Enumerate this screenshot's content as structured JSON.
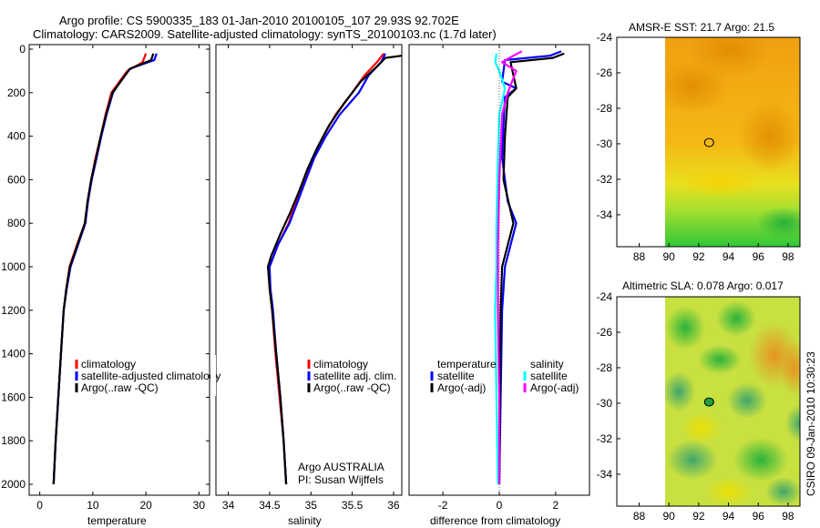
{
  "title": {
    "line1": "Argo profile: CS 5900335_183 01-Jan-2010 20100105_107 29.93S 92.702E",
    "line2": "Climatology: CARS2009. Satellite-adjusted climatology: synTS_20100103.nc (1.7d later)"
  },
  "credit": "CSIRO 09-Jan-2010 10:30:23",
  "chart_data": [
    {
      "type": "line",
      "name": "temperature",
      "xlabel": "temperature",
      "ylabel": "",
      "xlim": [
        -2,
        32
      ],
      "ylim": [
        2060,
        0
      ],
      "xticks": [
        0,
        10,
        20,
        30
      ],
      "yticks": [
        0,
        200,
        400,
        600,
        800,
        1000,
        1200,
        1400,
        1600,
        1800,
        2000
      ],
      "legend": [
        "climatology",
        "satellite-adjusted climatology",
        "Argo(..raw -QC)"
      ],
      "legend_location": "lower-right",
      "series": [
        {
          "name": "climatology",
          "color": "#ff0000",
          "points": [
            [
              20,
              20
            ],
            [
              19.4,
              60
            ],
            [
              16.5,
              100
            ],
            [
              15,
              150
            ],
            [
              13.5,
              200
            ],
            [
              12.4,
              300
            ],
            [
              11.5,
              400
            ],
            [
              10.5,
              500
            ],
            [
              9.7,
              600
            ],
            [
              9,
              700
            ],
            [
              8.5,
              800
            ],
            [
              7,
              900
            ],
            [
              5.6,
              1000
            ],
            [
              5,
              1100
            ],
            [
              4.5,
              1200
            ],
            [
              4,
              1400
            ],
            [
              3.5,
              1600
            ],
            [
              3,
              1800
            ],
            [
              2.6,
              2000
            ]
          ]
        },
        {
          "name": "satellite-adjusted climatology",
          "color": "#0000ff",
          "points": [
            [
              22,
              20
            ],
            [
              21.6,
              50
            ],
            [
              17,
              90
            ],
            [
              15.2,
              150
            ],
            [
              13.8,
              200
            ],
            [
              12.6,
              300
            ],
            [
              11.6,
              400
            ],
            [
              10.7,
              500
            ],
            [
              9.8,
              600
            ],
            [
              9.1,
              700
            ],
            [
              8.6,
              800
            ],
            [
              7.2,
              900
            ],
            [
              5.8,
              1000
            ],
            [
              5.1,
              1100
            ],
            [
              4.5,
              1200
            ],
            [
              4,
              1400
            ],
            [
              3.5,
              1600
            ],
            [
              3,
              1800
            ],
            [
              2.6,
              2000
            ]
          ]
        },
        {
          "name": "Argo(..raw -QC)",
          "color": "#000000",
          "points": [
            [
              21.4,
              20
            ],
            [
              21,
              50
            ],
            [
              17,
              90
            ],
            [
              15.2,
              150
            ],
            [
              13.7,
              200
            ],
            [
              12.5,
              300
            ],
            [
              11.5,
              400
            ],
            [
              10.6,
              500
            ],
            [
              9.7,
              600
            ],
            [
              9,
              700
            ],
            [
              8.5,
              800
            ],
            [
              7.1,
              900
            ],
            [
              5.7,
              1000
            ],
            [
              5,
              1100
            ],
            [
              4.5,
              1200
            ],
            [
              4,
              1400
            ],
            [
              3.5,
              1600
            ],
            [
              3,
              1800
            ],
            [
              2.6,
              2000
            ]
          ]
        }
      ]
    },
    {
      "type": "line",
      "name": "salinity",
      "xlabel": "salinity",
      "ylabel": "",
      "xlim": [
        33.85,
        36.1
      ],
      "ylim": [
        2060,
        0
      ],
      "xticks": [
        34,
        34.5,
        35,
        35.5,
        36
      ],
      "xticklabels": [
        "34",
        "34.5",
        "35",
        "35.5",
        "36"
      ],
      "legend": [
        "climatology",
        "satellite adj. clim.",
        "Argo(..raw -QC)"
      ],
      "legend_location": "lower-right",
      "annotation": [
        "Argo AUSTRALIA",
        "PI: Susan Wijffels"
      ],
      "series": [
        {
          "name": "climatology",
          "color": "#ff0000",
          "points": [
            [
              35.88,
              20
            ],
            [
              35.8,
              60
            ],
            [
              35.65,
              120
            ],
            [
              35.5,
              200
            ],
            [
              35.3,
              300
            ],
            [
              35.15,
              400
            ],
            [
              35.02,
              500
            ],
            [
              34.92,
              600
            ],
            [
              34.82,
              700
            ],
            [
              34.73,
              800
            ],
            [
              34.6,
              900
            ],
            [
              34.5,
              1000
            ],
            [
              34.5,
              1100
            ],
            [
              34.53,
              1200
            ],
            [
              34.57,
              1400
            ],
            [
              34.62,
              1600
            ],
            [
              34.67,
              1800
            ],
            [
              34.7,
              2000
            ]
          ]
        },
        {
          "name": "satellite adj. clim.",
          "color": "#0000ff",
          "points": [
            [
              35.9,
              20
            ],
            [
              35.85,
              60
            ],
            [
              35.7,
              120
            ],
            [
              35.58,
              200
            ],
            [
              35.35,
              300
            ],
            [
              35.18,
              400
            ],
            [
              35.04,
              500
            ],
            [
              34.94,
              600
            ],
            [
              34.84,
              700
            ],
            [
              34.74,
              800
            ],
            [
              34.6,
              900
            ],
            [
              34.5,
              1000
            ],
            [
              34.51,
              1100
            ],
            [
              34.54,
              1200
            ],
            [
              34.58,
              1400
            ],
            [
              34.63,
              1600
            ],
            [
              34.67,
              1800
            ],
            [
              34.7,
              2000
            ]
          ]
        },
        {
          "name": "Argo(..raw -QC)",
          "color": "#000000",
          "points": [
            [
              36.1,
              30
            ],
            [
              35.9,
              40
            ],
            [
              35.8,
              80
            ],
            [
              35.6,
              150
            ],
            [
              35.4,
              250
            ],
            [
              35.22,
              350
            ],
            [
              35.08,
              450
            ],
            [
              34.96,
              550
            ],
            [
              34.86,
              650
            ],
            [
              34.75,
              750
            ],
            [
              34.63,
              850
            ],
            [
              34.52,
              950
            ],
            [
              34.48,
              1000
            ],
            [
              34.5,
              1100
            ],
            [
              34.53,
              1200
            ],
            [
              34.58,
              1400
            ],
            [
              34.63,
              1600
            ],
            [
              34.67,
              1800
            ],
            [
              34.7,
              2000
            ]
          ]
        }
      ]
    },
    {
      "type": "line",
      "name": "difference",
      "xlabel": "difference from climatology",
      "ylabel": "",
      "xlim": [
        -3.2,
        3.2
      ],
      "ylim": [
        2060,
        0
      ],
      "xticks": [
        -2,
        0,
        2
      ],
      "legend_titles": [
        "temperature",
        "salinity"
      ],
      "legend": [
        "satellite",
        "Argo(-adj)",
        "satellite",
        "Argo(-adj)"
      ],
      "legend_location": "lower-center",
      "series": [
        {
          "name": "temperature satellite",
          "color": "#0000ff",
          "points": [
            [
              2.2,
              10
            ],
            [
              1.8,
              30
            ],
            [
              0.2,
              50
            ],
            [
              0.1,
              150
            ],
            [
              0.6,
              180
            ],
            [
              0.2,
              220
            ],
            [
              0.15,
              350
            ],
            [
              0.1,
              500
            ],
            [
              0.3,
              700
            ],
            [
              0.6,
              800
            ],
            [
              0.4,
              900
            ],
            [
              0.2,
              1000
            ],
            [
              0.1,
              1200
            ],
            [
              0.05,
              1600
            ],
            [
              0,
              2000
            ]
          ]
        },
        {
          "name": "temperature Argo(-adj)",
          "color": "#000000",
          "points": [
            [
              2.3,
              20
            ],
            [
              1.9,
              40
            ],
            [
              0.4,
              60
            ],
            [
              0.6,
              180
            ],
            [
              0.3,
              220
            ],
            [
              0.2,
              400
            ],
            [
              0.15,
              600
            ],
            [
              0.5,
              800
            ],
            [
              0.3,
              900
            ],
            [
              0.1,
              1000
            ],
            [
              0.05,
              1200
            ],
            [
              0,
              2000
            ]
          ]
        },
        {
          "name": "salinity satellite",
          "color": "#00ffff",
          "points": [
            [
              -0.1,
              20
            ],
            [
              -0.15,
              60
            ],
            [
              0,
              100
            ],
            [
              0.2,
              180
            ],
            [
              0,
              300
            ],
            [
              -0.05,
              500
            ],
            [
              -0.1,
              800
            ],
            [
              -0.1,
              1000
            ],
            [
              -0.15,
              1200
            ],
            [
              -0.1,
              1600
            ],
            [
              -0.05,
              2000
            ]
          ]
        },
        {
          "name": "salinity Argo(-adj)",
          "color": "#ff00ff",
          "points": [
            [
              0.8,
              10
            ],
            [
              0.5,
              30
            ],
            [
              0.1,
              60
            ],
            [
              0.6,
              100
            ],
            [
              0.3,
              200
            ],
            [
              0.1,
              300
            ],
            [
              0,
              600
            ],
            [
              -0.05,
              900
            ],
            [
              -0.05,
              1200
            ],
            [
              0,
              1600
            ],
            [
              0,
              2000
            ]
          ]
        }
      ]
    },
    {
      "type": "heatmap",
      "name": "AMSR-E SST map",
      "title": "AMSR-E SST: 21.7 Argo: 21.5",
      "xlim": [
        86.5,
        98.8
      ],
      "ylim": [
        -35.8,
        -24
      ],
      "xticks": [
        88,
        90,
        92,
        94,
        96,
        98
      ],
      "yticks": [
        -24,
        -26,
        -28,
        -30,
        -32,
        -34
      ],
      "data_xlim": [
        90,
        98.8
      ],
      "argo_position": [
        92.702,
        -29.93
      ]
    },
    {
      "type": "heatmap",
      "name": "Altimetric SLA map",
      "title": "Altimetric SLA: 0.078 Argo: 0.017",
      "xlim": [
        86.5,
        98.8
      ],
      "ylim": [
        -35.8,
        -24
      ],
      "xticks": [
        88,
        90,
        92,
        94,
        96,
        98
      ],
      "yticks": [
        -24,
        -26,
        -28,
        -30,
        -32,
        -34
      ],
      "data_xlim": [
        90,
        98.8
      ],
      "argo_position": [
        92.702,
        -29.93
      ]
    }
  ]
}
